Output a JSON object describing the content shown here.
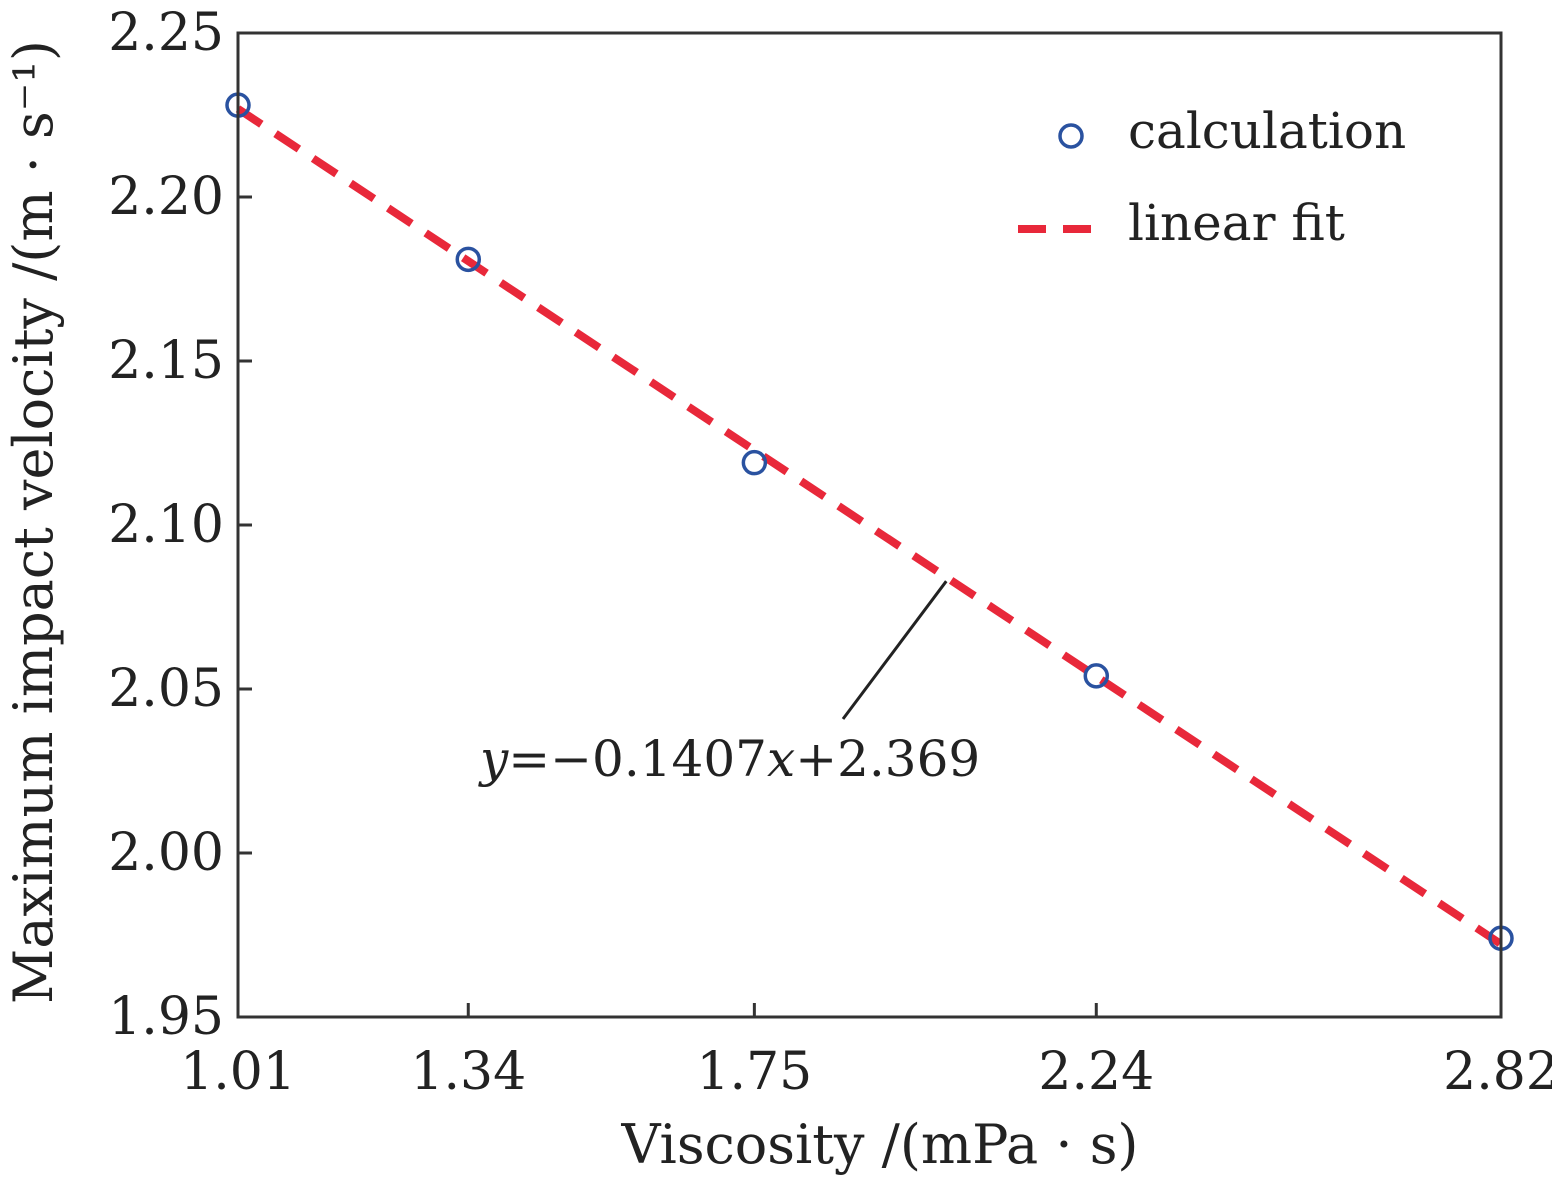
{
  "chart_data": {
    "type": "scatter",
    "title": "",
    "xlabel": "Viscosity /(mPa · s)",
    "ylabel": "Maximum impact velocity /(m · s⁻¹)",
    "x_ticks": [
      "1.01",
      "1.34",
      "1.75",
      "2.24",
      "2.82"
    ],
    "y_ticks": [
      "1.95",
      "2.00",
      "2.05",
      "2.10",
      "2.15",
      "2.20",
      "2.25"
    ],
    "xlim": [
      1.01,
      2.82
    ],
    "ylim": [
      1.95,
      2.25
    ],
    "grid": false,
    "legend_position": "top-right",
    "series": [
      {
        "name": "calculation",
        "kind": "scatter",
        "marker": "hollow-circle",
        "color": "#2a52a0",
        "x": [
          1.01,
          1.34,
          1.75,
          2.24,
          2.82
        ],
        "y": [
          2.228,
          2.181,
          2.119,
          2.054,
          1.974
        ]
      },
      {
        "name": "linear fit",
        "kind": "line",
        "style": "dashed",
        "color": "#e8283a",
        "slope": -0.1407,
        "intercept": 2.369
      }
    ],
    "annotation": {
      "text_y": "y",
      "text_middle": "=−0.1407",
      "text_x": "x",
      "text_tail": "+2.369",
      "target_x": 2.025
    }
  }
}
